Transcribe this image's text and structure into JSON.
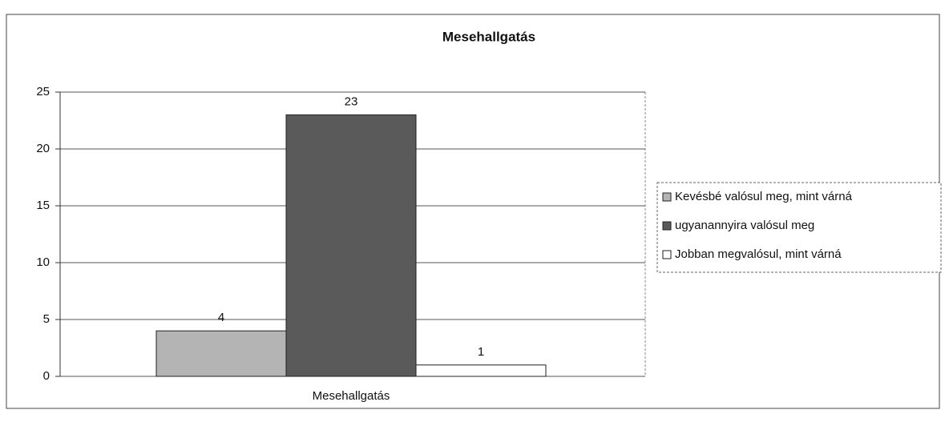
{
  "chart_data": {
    "type": "bar",
    "title": "Mesehallgatás",
    "categories": [
      "Mesehallgatás"
    ],
    "series": [
      {
        "name": "Kevésbé valósul meg, mint várná",
        "color": "#b4b4b4",
        "values": [
          4
        ]
      },
      {
        "name": "ugyanannyira valósul meg",
        "color": "#5a5a5a",
        "values": [
          23
        ]
      },
      {
        "name": "Jobban megvalósul, mint várná",
        "color": "#ffffff",
        "values": [
          1
        ]
      }
    ],
    "ylim": [
      0,
      25
    ],
    "yticks": [
      0,
      5,
      10,
      15,
      20,
      25
    ],
    "grid": true,
    "legend": "right"
  }
}
